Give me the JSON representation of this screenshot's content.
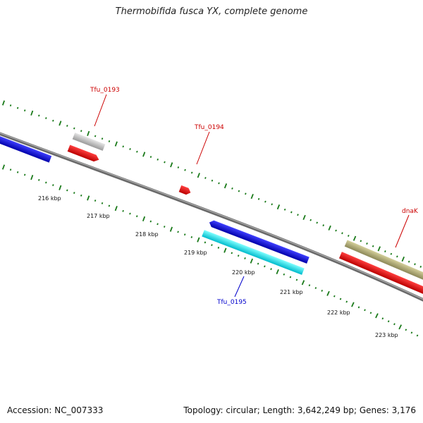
{
  "title": "Thermobifida fusca YX, complete genome",
  "footer": {
    "accession": "Accession: NC_007333",
    "summary": "Topology: circular; Length: 3,642,249 bp; Genes: 3,176"
  },
  "scale_labels": [
    "216 kbp",
    "217 kbp",
    "218 kbp",
    "219 kbp",
    "220 kbp",
    "221 kbp",
    "222 kbp",
    "223 kbp"
  ],
  "gene_labels": [
    {
      "name": "Tfu_0193",
      "color": "#cc0000"
    },
    {
      "name": "Tfu_0194",
      "color": "#cc0000"
    },
    {
      "name": "dnaK",
      "color": "#cc0000"
    },
    {
      "name": "Tfu_0195",
      "color": "#0000cc"
    }
  ],
  "colors": {
    "backbone": "#808080",
    "tick": "#1a7a1a",
    "forward_cds": "#0000dd",
    "reverse_cds": "#ee0000",
    "gene_grey": "#c0c0c0",
    "rna_cyan": "#00e5ee",
    "gene_khaki": "#b5b07a"
  }
}
